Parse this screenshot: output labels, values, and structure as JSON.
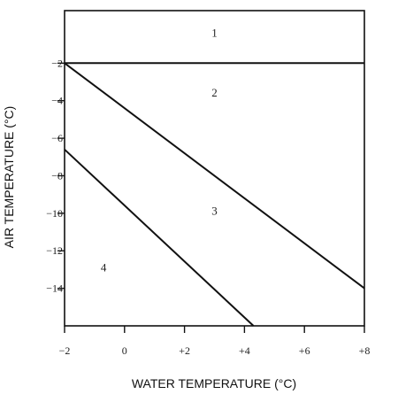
{
  "chart_data": {
    "type": "line",
    "xlabel": "WATER TEMPERATURE (°C)",
    "ylabel": "AIR TEMPERATURE (°C)",
    "xlim": [
      -2,
      8
    ],
    "ylim": [
      -16,
      0.8
    ],
    "x_ticks": [
      {
        "value": -2,
        "label": "−2"
      },
      {
        "value": 0,
        "label": "0"
      },
      {
        "value": 2,
        "label": "+2"
      },
      {
        "value": 4,
        "label": "+4"
      },
      {
        "value": 6,
        "label": "+6"
      },
      {
        "value": 8,
        "label": "+8"
      }
    ],
    "y_ticks": [
      {
        "value": -2,
        "label": "−2"
      },
      {
        "value": -4,
        "label": "−4"
      },
      {
        "value": -6,
        "label": "−6"
      },
      {
        "value": -8,
        "label": "−8"
      },
      {
        "value": -10,
        "label": "−10"
      },
      {
        "value": -12,
        "label": "−12"
      },
      {
        "value": -14,
        "label": "−14"
      }
    ],
    "series": [
      {
        "x": [
          -2,
          8
        ],
        "y": [
          -2,
          -2
        ]
      },
      {
        "x": [
          -2,
          8
        ],
        "y": [
          -2,
          -14
        ]
      },
      {
        "x": [
          -2,
          4.3
        ],
        "y": [
          -6.6,
          -16
        ]
      }
    ],
    "region_labels": [
      {
        "text": "1",
        "x": 3.0,
        "y": -0.4
      },
      {
        "text": "2",
        "x": 3.0,
        "y": -3.6
      },
      {
        "text": "3",
        "x": 3.0,
        "y": -9.9
      },
      {
        "text": "4",
        "x": -0.7,
        "y": -12.9
      }
    ],
    "grid": false,
    "legend": "none"
  }
}
